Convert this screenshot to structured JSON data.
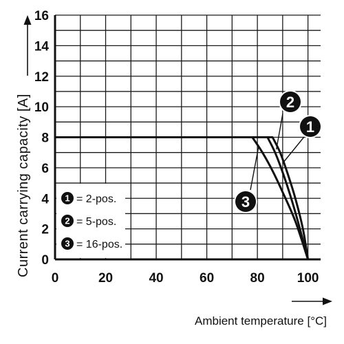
{
  "chart_data": {
    "type": "line",
    "xlabel": "Ambient temperature [°C]",
    "ylabel": "Current carrying capacity [A]",
    "xlim": [
      0,
      105
    ],
    "ylim": [
      0,
      16
    ],
    "x_ticks": [
      0,
      20,
      40,
      60,
      80,
      100
    ],
    "y_ticks": [
      0,
      2,
      4,
      6,
      8,
      10,
      12,
      14,
      16
    ],
    "grid": true,
    "series": [
      {
        "name": "1 = 2-pos.",
        "badge": "1",
        "points": [
          [
            0,
            8
          ],
          [
            86,
            8
          ],
          [
            89,
            7
          ],
          [
            92,
            5.6
          ],
          [
            95,
            4
          ],
          [
            98,
            2
          ],
          [
            100,
            0
          ]
        ]
      },
      {
        "name": "2 = 5-pos.",
        "badge": "2",
        "points": [
          [
            0,
            8
          ],
          [
            84,
            8
          ],
          [
            87,
            7
          ],
          [
            90,
            5.7
          ],
          [
            93,
            4.2
          ],
          [
            96,
            2.5
          ],
          [
            100,
            0
          ]
        ]
      },
      {
        "name": "3 = 16-pos.",
        "badge": "3",
        "points": [
          [
            0,
            8
          ],
          [
            78,
            8
          ],
          [
            82,
            7
          ],
          [
            86,
            5.8
          ],
          [
            90,
            4.4
          ],
          [
            95,
            2.5
          ],
          [
            100,
            0
          ]
        ]
      }
    ],
    "legend": {
      "placement": "bottom-left",
      "entries": [
        {
          "badge": "1",
          "label": "= 2-pos."
        },
        {
          "badge": "2",
          "label": "= 5-pos."
        },
        {
          "badge": "3",
          "label": "= 16-pos."
        }
      ]
    },
    "callouts": [
      "2",
      "1",
      "3"
    ],
    "colors": {
      "line": "#111111",
      "grid": "#1a1a1a",
      "badge_fill": "#111111",
      "badge_text": "#ffffff"
    }
  }
}
